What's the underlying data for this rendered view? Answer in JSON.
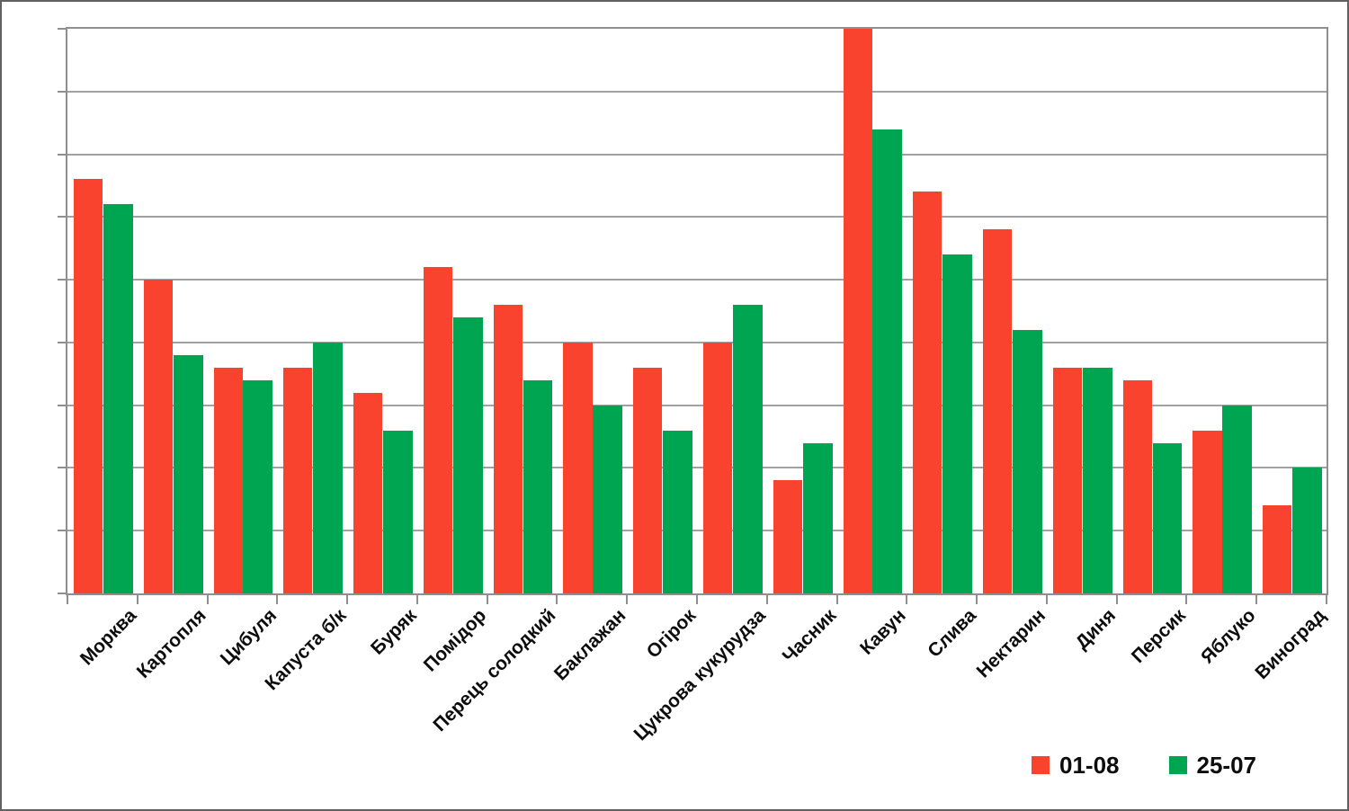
{
  "chart": {
    "background_color": "#ffffff",
    "outer_border_color": "#616161",
    "plot_frame_color": "#8f8f8f",
    "gridline_color": "#a2a2a2",
    "tick_color": "#8f8f8f",
    "label_color": "#0d0d0d",
    "y_axis_labels_visible": false
  },
  "chart_data": {
    "type": "bar",
    "title": "",
    "xlabel": "",
    "ylabel": "",
    "categories": [
      "Морква",
      "Картопля",
      "Цибуля",
      "Капуста б/к",
      "Буряк",
      "Помідор",
      "Перець солодкий",
      "Баклажан",
      "Огірок",
      "Цукрова кукурудза",
      "Часник",
      "Кавун",
      "Слива",
      "Нектарин",
      "Диня",
      "Персик",
      "Яблуко",
      "Виноград"
    ],
    "series": [
      {
        "name": "01-08",
        "color": "#f9432e",
        "values": [
          6.6,
          5.0,
          3.6,
          3.6,
          3.2,
          5.2,
          4.6,
          4.0,
          3.6,
          4.0,
          1.8,
          9.0,
          6.4,
          5.8,
          3.6,
          3.4,
          2.6,
          1.4
        ]
      },
      {
        "name": "25-07",
        "color": "#00a551",
        "values": [
          6.2,
          3.8,
          3.4,
          4.0,
          2.6,
          4.4,
          3.4,
          3.0,
          2.6,
          4.6,
          2.4,
          7.4,
          5.4,
          4.2,
          3.6,
          2.4,
          3.0,
          2.0
        ]
      }
    ],
    "ylim": [
      0,
      9
    ],
    "gridline_step": 1,
    "unit_note": "Y-axis shows no numeric labels; values measured in gridline intervals (9 intervals from axis to top of plot).",
    "grid": true,
    "legend_position": "bottom-right"
  }
}
